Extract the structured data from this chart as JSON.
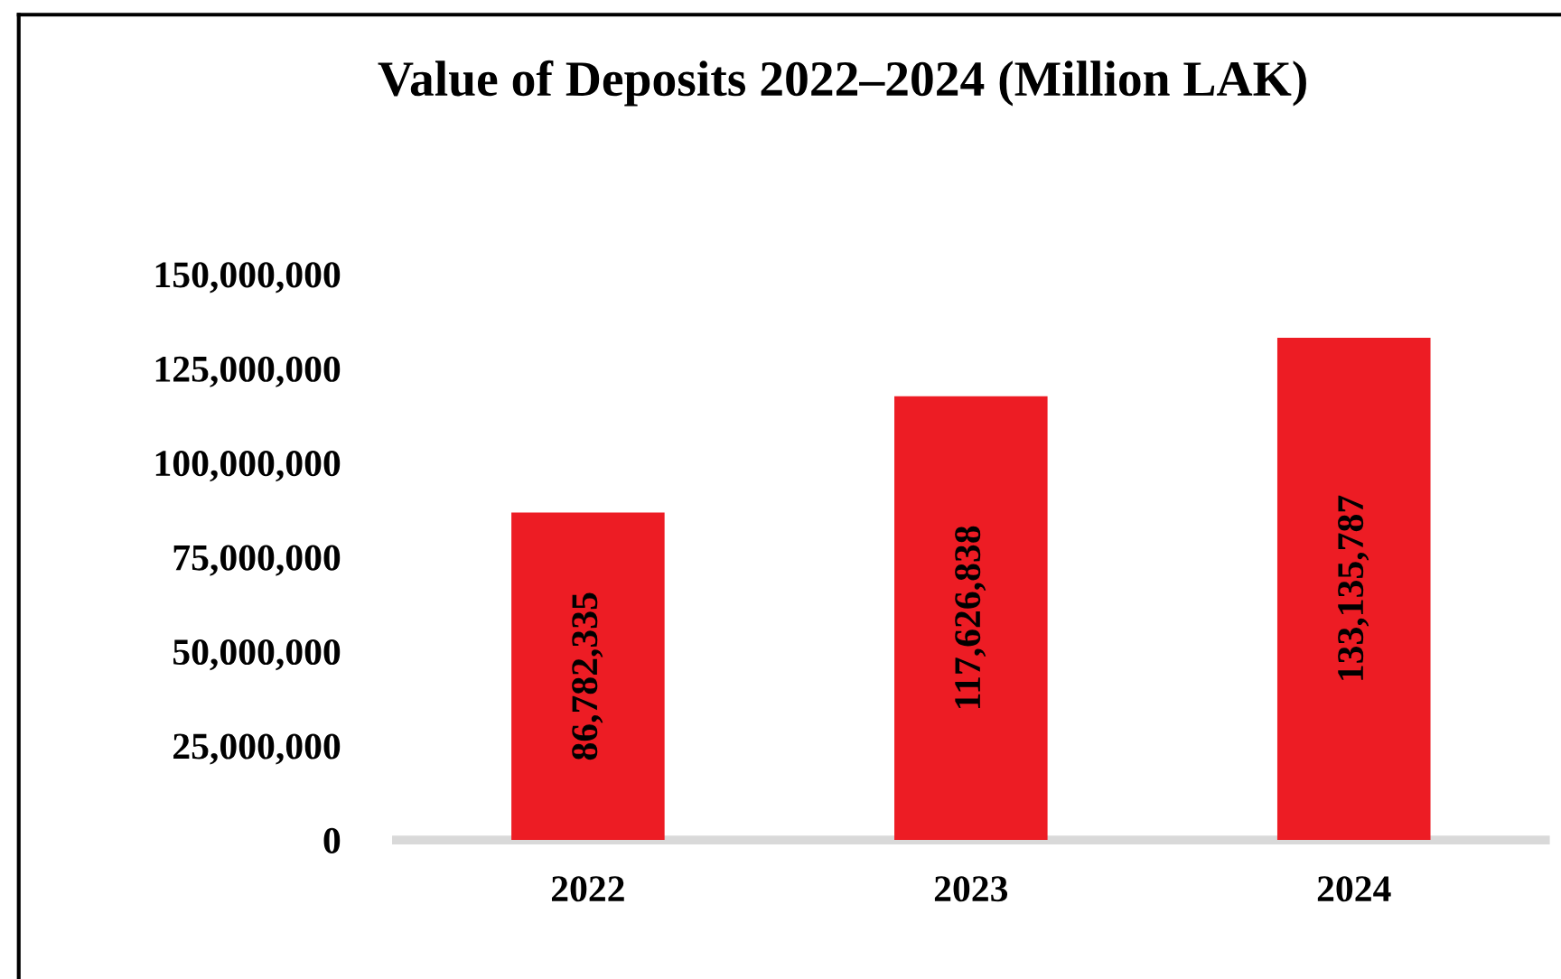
{
  "chart_data": {
    "type": "bar",
    "title": "Value of Deposits 2022–2024 (Million LAK)",
    "categories": [
      "2022",
      "2023",
      "2024"
    ],
    "values": [
      86782335,
      117626838,
      133135787
    ],
    "color": "#ed1c24",
    "ylim": [
      0,
      150000000
    ],
    "yticks": [
      {
        "value": 0,
        "label": "0"
      },
      {
        "value": 25000000,
        "label": "25,000,000"
      },
      {
        "value": 50000000,
        "label": "50,000,000"
      },
      {
        "value": 75000000,
        "label": "75,000,000"
      },
      {
        "value": 100000000,
        "label": "100,000,000"
      },
      {
        "value": 125000000,
        "label": "125,000,000"
      },
      {
        "value": 150000000,
        "label": "150,000,000"
      }
    ],
    "value_labels": [
      "86,782,335",
      "117,626,838",
      "133,135,787"
    ],
    "grid": false,
    "legend": false
  }
}
